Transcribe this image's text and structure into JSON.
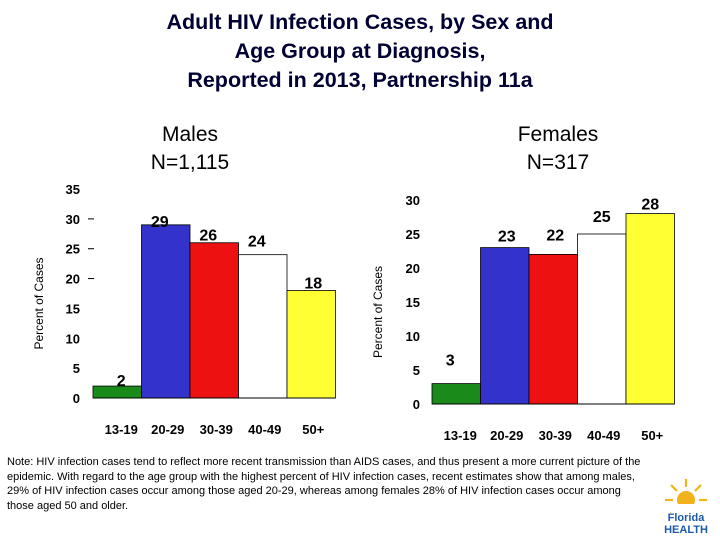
{
  "title": {
    "line1": "Adult HIV Infection Cases, by Sex and",
    "line2": "Age Group at Diagnosis,",
    "line3": "Reported in 2013, Partnership 11a"
  },
  "males": {
    "label": "Males",
    "count": "N=1,115"
  },
  "females": {
    "label": "Females",
    "count": "N=317"
  },
  "colors": {
    "13-19": "#1a8a1a",
    "20-29": "#3333cc",
    "30-39": "#ee1111",
    "40-49": "#ffffff",
    "50+": "#ffff33"
  },
  "chart_data": [
    {
      "type": "bar",
      "title": "Males N=1,115",
      "categories": [
        "13-19",
        "20-29",
        "30-39",
        "40-49",
        "50+"
      ],
      "values": [
        2,
        29,
        26,
        24,
        18
      ],
      "ylabel": "Percent of Cases",
      "ylim": [
        0,
        35
      ],
      "yticks": [
        0,
        5,
        10,
        15,
        20,
        25,
        30,
        35
      ]
    },
    {
      "type": "bar",
      "title": "Females N=317",
      "categories": [
        "13-19",
        "20-29",
        "30-39",
        "40-49",
        "50+"
      ],
      "values": [
        3,
        23,
        22,
        25,
        28
      ],
      "ylabel": "Percent of Cases",
      "ylim": [
        0,
        30
      ],
      "yticks": [
        0,
        5,
        10,
        15,
        20,
        25,
        30
      ]
    }
  ],
  "note": "Note: HIV infection cases tend to reflect more recent transmission than AIDS cases, and thus present a more current picture of the epidemic. With regard to the age group with the highest percent of HIV infection cases, recent estimates show that among males, 29% of HIV infection cases occur among those aged 20-29, whereas among females 28% of HIV infection cases occur among those aged 50 and older.",
  "logo": {
    "line1": "Florida",
    "line2": "HEALTH"
  }
}
